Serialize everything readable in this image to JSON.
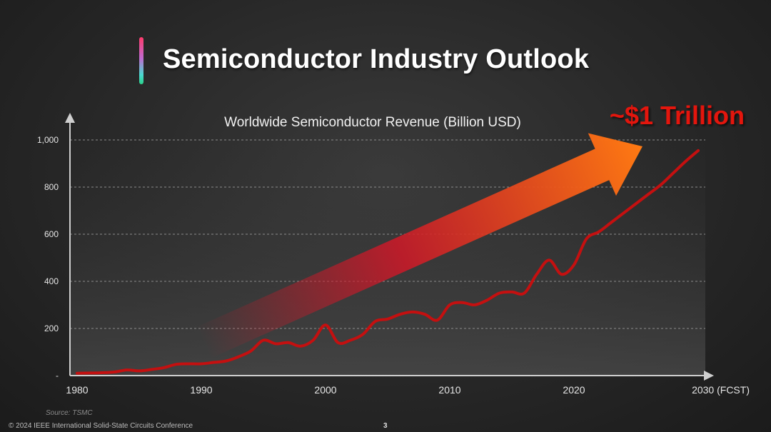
{
  "slide": {
    "title": "Semiconductor Industry Outlook",
    "source": "Source: TSMC",
    "copyright": "© 2024 IEEE International Solid-State Circuits Conference",
    "page_number": "3"
  },
  "colors": {
    "line": "#c41010",
    "arrow_start": "#d01828",
    "arrow_end": "#ff7a12",
    "callout": "#e3120b",
    "accent_top": "#ff3b6b",
    "accent_bottom": "#2bd18a"
  },
  "chart_data": {
    "type": "line",
    "title": "Worldwide Semiconductor Revenue (Billion USD)",
    "xlabel": "",
    "ylabel": "",
    "xlim": [
      1980,
      2030
    ],
    "ylim": [
      0,
      1000
    ],
    "x_ticks": [
      {
        "value": 1980,
        "label": "1980"
      },
      {
        "value": 1990,
        "label": "1990"
      },
      {
        "value": 2000,
        "label": "2000"
      },
      {
        "value": 2010,
        "label": "2010"
      },
      {
        "value": 2020,
        "label": "2020"
      },
      {
        "value": 2030,
        "label": "2030 (FCST)"
      }
    ],
    "y_ticks": [
      {
        "value": 0,
        "label": "-"
      },
      {
        "value": 200,
        "label": "200"
      },
      {
        "value": 400,
        "label": "400"
      },
      {
        "value": 600,
        "label": "600"
      },
      {
        "value": 800,
        "label": "800"
      },
      {
        "value": 1000,
        "label": "1,000"
      }
    ],
    "grid": true,
    "series": [
      {
        "name": "Worldwide Semiconductor Revenue",
        "x": [
          1980,
          1981,
          1982,
          1983,
          1984,
          1985,
          1986,
          1987,
          1988,
          1989,
          1990,
          1991,
          1992,
          1993,
          1994,
          1995,
          1996,
          1997,
          1998,
          1999,
          2000,
          2001,
          2002,
          2003,
          2004,
          2005,
          2006,
          2007,
          2008,
          2009,
          2010,
          2011,
          2012,
          2013,
          2014,
          2015,
          2016,
          2017,
          2018,
          2019,
          2020,
          2021,
          2022,
          2023,
          2024,
          2025,
          2026,
          2027,
          2028,
          2029,
          2030
        ],
        "values": [
          10,
          11,
          12,
          15,
          24,
          20,
          26,
          34,
          48,
          50,
          50,
          56,
          62,
          80,
          105,
          150,
          135,
          140,
          125,
          150,
          215,
          140,
          150,
          175,
          230,
          240,
          260,
          270,
          260,
          235,
          300,
          310,
          300,
          320,
          350,
          355,
          350,
          430,
          490,
          430,
          470,
          580,
          610,
          650,
          690,
          730,
          770,
          810,
          860,
          910,
          955
        ]
      }
    ],
    "annotations": [
      {
        "text": "~$1 Trillion",
        "position": "top-right"
      }
    ]
  }
}
